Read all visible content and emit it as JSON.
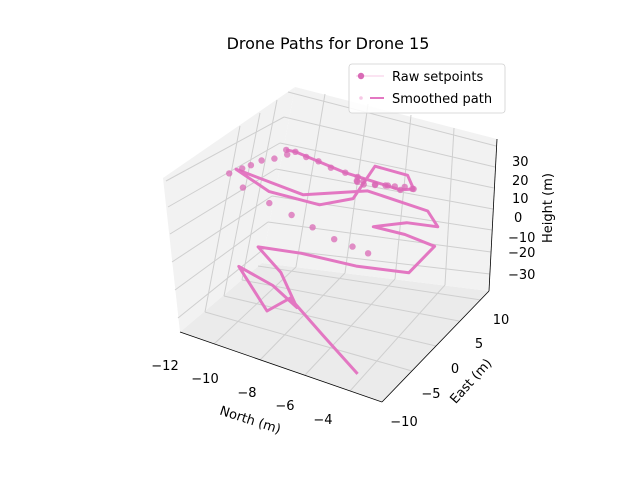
{
  "chart_data": {
    "type": "line",
    "projection": "3d",
    "title": "Drone Paths for Drone 15",
    "x_label": "North (m)",
    "y_label": "East (m)",
    "z_label": "Height (m)",
    "x_ticks": [
      "−12",
      "−10",
      "−8",
      "−6",
      "−4"
    ],
    "y_ticks": [
      "−10",
      "−5",
      "0",
      "5",
      "10"
    ],
    "z_ticks": [
      "−30",
      "−20",
      "−10",
      "0",
      "10",
      "20",
      "30"
    ],
    "xlim": [
      -12.3,
      -2.5
    ],
    "ylim": [
      -11.5,
      12
    ],
    "zlim": [
      -36,
      36
    ],
    "grid": true,
    "legend_position": "top-right",
    "colors": {
      "series": "#e377c2",
      "pane": "#f2f2f2",
      "grid": "#cfcfcf"
    },
    "series": [
      {
        "name": "Raw setpoints",
        "kind": "markers",
        "points": [
          [
            -4.6,
            4.5,
            22
          ],
          [
            -4.5,
            3.8,
            24
          ],
          [
            -4.7,
            3.0,
            26
          ],
          [
            -5.0,
            2.2,
            27
          ],
          [
            -5.3,
            1.5,
            28
          ],
          [
            -5.7,
            1.0,
            28
          ],
          [
            -6.2,
            0.8,
            27
          ],
          [
            -6.6,
            1.2,
            26
          ],
          [
            -6.8,
            2.0,
            24
          ],
          [
            -6.7,
            3.0,
            22
          ],
          [
            -6.3,
            3.8,
            20
          ],
          [
            -5.8,
            4.3,
            20
          ],
          [
            -5.2,
            4.3,
            20
          ],
          [
            -7.2,
            4.0,
            20
          ],
          [
            -7.8,
            4.0,
            20
          ],
          [
            -8.5,
            4.0,
            20
          ],
          [
            -9.1,
            4.0,
            21
          ],
          [
            -9.7,
            4.0,
            21
          ],
          [
            -10.2,
            3.9,
            22
          ],
          [
            -10.6,
            3.7,
            22
          ],
          [
            -10.4,
            3.0,
            22
          ],
          [
            -10.8,
            2.0,
            21
          ],
          [
            -11.2,
            1.0,
            21
          ],
          [
            -11.5,
            0.0,
            20
          ],
          [
            -11.7,
            -1.0,
            20
          ],
          [
            -12.0,
            -2.5,
            20
          ],
          [
            -11.0,
            -4.0,
            20
          ],
          [
            -9.5,
            -5.0,
            20
          ],
          [
            -8.2,
            -6.0,
            21
          ],
          [
            -7.0,
            -6.8,
            21
          ],
          [
            -5.8,
            -7.5,
            21
          ],
          [
            -4.8,
            -8.0,
            22
          ],
          [
            -4.0,
            -8.2,
            22
          ]
        ]
      },
      {
        "name": "Smoothed path",
        "kind": "line",
        "points": [
          [
            -4.0,
            -10.5,
            -30
          ],
          [
            -6.0,
            -9.0,
            -22
          ],
          [
            -8.0,
            -7.2,
            -15
          ],
          [
            -9.5,
            -5.5,
            -30
          ],
          [
            -11.2,
            -4.0,
            -18
          ],
          [
            -9.0,
            -6.5,
            -14
          ],
          [
            -7.5,
            -8.0,
            -16
          ],
          [
            -8.5,
            -7.0,
            -5
          ],
          [
            -10.0,
            -5.2,
            -2
          ],
          [
            -8.5,
            -2.5,
            -6
          ],
          [
            -6.5,
            0.5,
            -12
          ],
          [
            -4.5,
            3.0,
            -14
          ],
          [
            -3.6,
            4.6,
            -2
          ],
          [
            -4.8,
            3.5,
            2
          ],
          [
            -6.0,
            2.0,
            5
          ],
          [
            -5.0,
            4.8,
            4
          ],
          [
            -3.8,
            6.2,
            3
          ],
          [
            -4.2,
            5.8,
            10
          ],
          [
            -6.5,
            3.0,
            18
          ],
          [
            -9.0,
            0.2,
            14
          ],
          [
            -11.6,
            -2.8,
            24
          ],
          [
            -10.5,
            -0.5,
            12
          ],
          [
            -8.5,
            1.5,
            8
          ],
          [
            -7.2,
            3.0,
            12
          ],
          [
            -6.8,
            6.0,
            22
          ],
          [
            -5.0,
            5.0,
            26
          ],
          [
            -4.6,
            4.5,
            22
          ],
          [
            -5.2,
            4.3,
            20
          ],
          [
            -7.8,
            4.0,
            20
          ],
          [
            -10.2,
            3.9,
            22
          ],
          [
            -10.6,
            3.7,
            22
          ]
        ]
      }
    ]
  }
}
